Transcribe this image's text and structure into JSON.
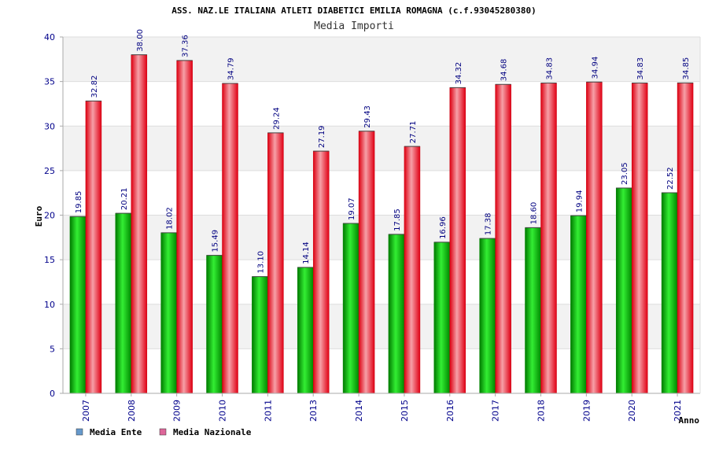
{
  "chart_data": {
    "type": "bar",
    "title": "ASS. NAZ.LE ITALIANA ATLETI DIABETICI EMILIA ROMAGNA (c.f.93045280380)",
    "subtitle": "Media Importi",
    "xlabel": "Anno",
    "ylabel": "Euro",
    "ylim": [
      0,
      40
    ],
    "ytick_step": 5,
    "categories": [
      "2007",
      "2008",
      "2009",
      "2010",
      "2011",
      "2013",
      "2014",
      "2015",
      "2016",
      "2017",
      "2018",
      "2019",
      "2020",
      "2021"
    ],
    "series": [
      {
        "name": "Media Ente",
        "legend_color": "#6699cc",
        "color": "#00b000",
        "values": [
          19.85,
          20.21,
          18.02,
          15.49,
          13.1,
          14.14,
          19.07,
          17.85,
          16.96,
          17.38,
          18.6,
          19.94,
          23.05,
          22.52
        ],
        "labels": [
          "19.85",
          "20.21",
          "18.02",
          "15.49",
          "13.10",
          "14.14",
          "19.07",
          "17.85",
          "16.96",
          "17.38",
          "18.60",
          "19.94",
          "23.05",
          "22.52"
        ]
      },
      {
        "name": "Media Nazionale",
        "legend_color": "#dd6699",
        "color": "#ee1122",
        "values": [
          32.82,
          38.0,
          37.36,
          34.79,
          29.24,
          27.19,
          29.43,
          27.71,
          34.32,
          34.68,
          34.83,
          34.94,
          34.83,
          34.85
        ],
        "labels": [
          "32.82",
          "38.00",
          "37.36",
          "34.79",
          "29.24",
          "27.19",
          "29.43",
          "27.71",
          "34.32",
          "34.68",
          "34.83",
          "34.94",
          "34.83",
          "34.85"
        ]
      }
    ],
    "legend_position": "bottom-left"
  }
}
